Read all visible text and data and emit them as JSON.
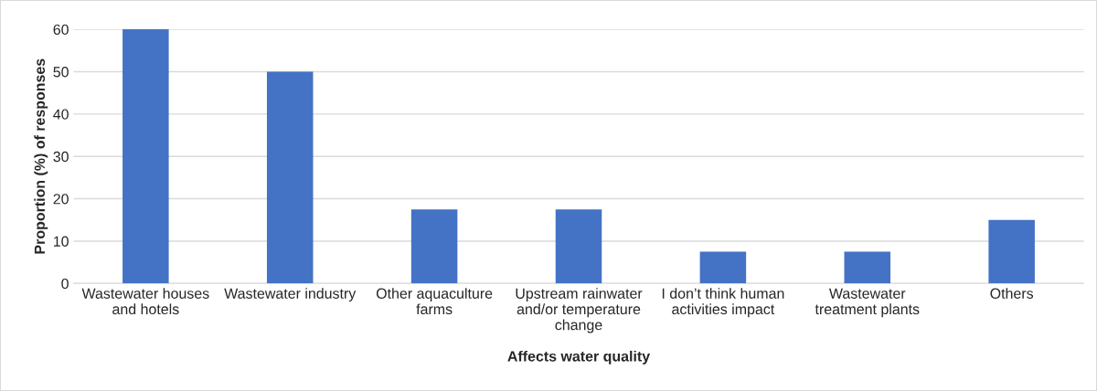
{
  "chart_data": {
    "type": "bar",
    "xlabel": "Affects water quality",
    "ylabel": "Proportion (%) of responses",
    "categories": [
      "Wastewater houses\nand hotels",
      "Wastewater industry",
      "Other aquaculture\nfarms",
      "Upstream rainwater\nand/or temperature\nchange",
      "I don’t think human\nactivities impact",
      "Wastewater\ntreatment plants",
      "Others"
    ],
    "values": [
      60,
      50,
      17.5,
      17.5,
      7.5,
      7.5,
      15
    ],
    "color": "#4472c4",
    "ylim": [
      0,
      60
    ],
    "yticks": [
      0,
      10,
      20,
      30,
      40,
      50,
      60
    ],
    "grid": "y"
  }
}
